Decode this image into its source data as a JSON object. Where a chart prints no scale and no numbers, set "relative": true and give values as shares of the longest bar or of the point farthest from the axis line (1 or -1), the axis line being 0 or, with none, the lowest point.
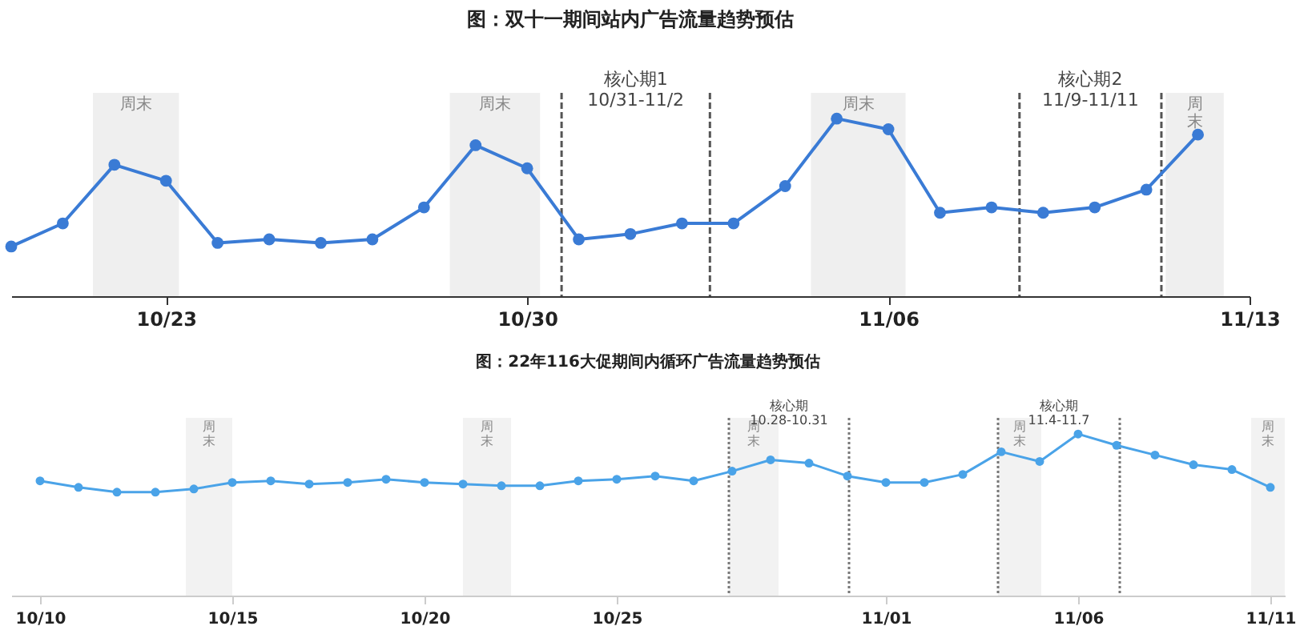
{
  "chart_data": [
    {
      "type": "line",
      "title": "图：双十一期间站内广告流量趋势预估",
      "relative": true,
      "marker": "circle",
      "line_style": "solid",
      "grid": false,
      "tick_labels": "x",
      "x": [
        "--10-20",
        "--10-21",
        "--10-22",
        "--10-23",
        "--10-24",
        "--10-25",
        "--10-26",
        "--10-27",
        "--10-28",
        "--10-29",
        "--10-30",
        "--10-31",
        "--11-01",
        "--11-02",
        "--11-03",
        "--11-04",
        "--11-05",
        "--11-06",
        "--11-07",
        "--11-08",
        "--11-09",
        "--11-10",
        "--11-11",
        "--11-12"
      ],
      "series": [
        {
          "color": "#3a7bd5",
          "values": [
            0.28,
            0.41,
            0.74,
            0.65,
            0.3,
            0.32,
            0.3,
            0.32,
            0.5,
            0.85,
            0.72,
            0.32,
            0.35,
            0.41,
            0.41,
            0.62,
            1,
            0.94,
            0.47,
            0.5,
            0.47,
            0.5,
            0.6,
            0.91
          ]
        }
      ],
      "xlim": [
        "--10-20",
        "--11-13"
      ],
      "xticks": [
        {
          "value": "--10-23",
          "label": "10/23"
        },
        {
          "value": "--10-30",
          "label": "10/30"
        },
        {
          "value": "--11-06",
          "label": "11/06"
        },
        {
          "value": "--11-13",
          "label": "11/13"
        }
      ],
      "bands": [
        {
          "axis": "x",
          "from": "--10-21T14:00",
          "to": "--10-23T06:00",
          "label": "周末",
          "color": "#efefef"
        },
        {
          "axis": "x",
          "from": "--10-28T12:00",
          "to": "--10-30T06:00",
          "label": "周末",
          "color": "#efefef"
        },
        {
          "axis": "x",
          "from": "--11-04T12:00",
          "to": "--11-06T08:00",
          "label": "周末",
          "color": "#efefef"
        },
        {
          "axis": "x",
          "from": "--11-11T09:00",
          "to": "--11-12T12:00",
          "label": "周末",
          "color": "#efefef"
        }
      ],
      "ref_lines": [
        {
          "axis": "x",
          "value": "--10-30T16:00",
          "label": "核心期1 10/31-11/2",
          "color": "#555555",
          "line_style": "dashed"
        },
        {
          "axis": "x",
          "value": "--11-02T13:00",
          "label": null,
          "color": "#555555",
          "line_style": "dashed"
        },
        {
          "axis": "x",
          "value": "--11-08T13:00",
          "label": "核心期2 11/9-11/11",
          "color": "#555555",
          "line_style": "dashed"
        },
        {
          "axis": "x",
          "value": "--11-11T07:00",
          "label": null,
          "color": "#555555",
          "line_style": "dashed"
        }
      ]
    },
    {
      "type": "line",
      "title": "图：22年116大促期间内循环广告流量趋势预估",
      "relative": true,
      "marker": "circle",
      "line_style": "solid",
      "grid": false,
      "tick_labels": "x",
      "x": [
        "--10-10",
        "--10-11",
        "--10-12",
        "--10-13",
        "--10-14",
        "--10-15",
        "--10-16",
        "--10-17",
        "--10-18",
        "--10-19",
        "--10-20",
        "--10-21",
        "--10-22",
        "--10-23",
        "--10-24",
        "--10-25",
        "--10-26",
        "--10-27",
        "--10-28",
        "--10-29",
        "--10-30",
        "--10-31",
        "--11-01",
        "--11-02",
        "--11-03",
        "--11-04",
        "--11-05",
        "--11-06",
        "--11-07",
        "--11-08",
        "--11-09",
        "--11-10",
        "--11-11"
      ],
      "series": [
        {
          "color": "#4aa3e8",
          "values": [
            0.71,
            0.67,
            0.64,
            0.64,
            0.66,
            0.7,
            0.71,
            0.69,
            0.7,
            0.72,
            0.7,
            0.69,
            0.68,
            0.68,
            0.71,
            0.72,
            0.74,
            0.71,
            0.77,
            0.84,
            0.82,
            0.74,
            0.7,
            0.7,
            0.75,
            0.89,
            0.83,
            1,
            0.93,
            0.87,
            0.81,
            0.78,
            0.67
          ]
        }
      ],
      "xlim": [
        "--10-09T06:00",
        "--11-11T09:00"
      ],
      "xticks": [
        {
          "value": "--10-10",
          "label": "10/10"
        },
        {
          "value": "--10-15",
          "label": "10/15"
        },
        {
          "value": "--10-20",
          "label": "10/20"
        },
        {
          "value": "--10-25",
          "label": "10/25"
        },
        {
          "value": "--11-01",
          "label": "11/01"
        },
        {
          "value": "--11-06",
          "label": "11/06"
        },
        {
          "value": "--11-11",
          "label": "11/11"
        }
      ],
      "bands": [
        {
          "axis": "x",
          "from": "--10-13T19:00",
          "to": "--10-15T00:00",
          "label": "周末",
          "color": "#f2f2f2"
        },
        {
          "axis": "x",
          "from": "--10-21T00:00",
          "to": "--10-22T06:00",
          "label": "周末",
          "color": "#f2f2f2"
        },
        {
          "axis": "x",
          "from": "--10-27T22:00",
          "to": "--10-29T05:00",
          "label": "周末",
          "color": "#f2f2f2"
        },
        {
          "axis": "x",
          "from": "--11-03T22:00",
          "to": "--11-05T01:00",
          "label": "周末",
          "color": "#f2f2f2"
        },
        {
          "axis": "x",
          "from": "--11-10T12:00",
          "to": "--11-11T09:00",
          "label": "周末",
          "color": "#f2f2f2"
        }
      ],
      "ref_lines": [
        {
          "axis": "x",
          "value": "--10-27T22:00",
          "label": "核心期 10.28-10.31",
          "color": "#777777",
          "line_style": "dotted"
        },
        {
          "axis": "x",
          "value": "--10-31T01:00",
          "label": null,
          "color": "#777777",
          "line_style": "dotted"
        },
        {
          "axis": "x",
          "value": "--11-03T22:00",
          "label": "核心期 11.4-11.7",
          "color": "#777777",
          "line_style": "dotted"
        },
        {
          "axis": "x",
          "value": "--11-07T02:00",
          "label": null,
          "color": "#777777",
          "line_style": "dotted"
        }
      ]
    }
  ]
}
